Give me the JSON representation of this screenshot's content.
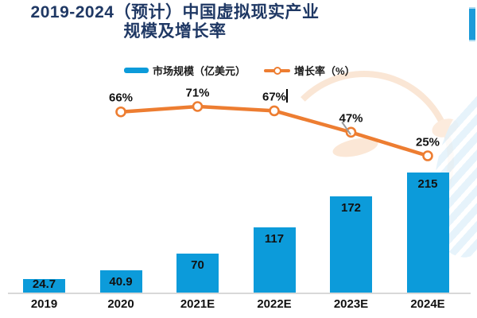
{
  "title": {
    "line1": "2019-2024（预计）中国虚拟现实产业",
    "line2": "规模及增长率"
  },
  "legend": {
    "market_label": "市场规模（亿美元）",
    "growth_label": "增长率（%）"
  },
  "colors": {
    "bar": "#0C9BDA",
    "line": "#ED7D31",
    "title": "#1F3864",
    "axis": "#D8D8D8",
    "scrollbar": "#1B9BD9"
  },
  "chart_data": {
    "type": "bar+line",
    "title": "2019-2024（预计）中国虚拟现实产业规模及增长率",
    "categories": [
      "2019",
      "2020",
      "2021E",
      "2022E",
      "2023E",
      "2024E"
    ],
    "series": [
      {
        "name": "市场规模（亿美元）",
        "type": "bar",
        "color": "#0C9BDA",
        "values": [
          24.7,
          40.9,
          70,
          117,
          172,
          215
        ],
        "labels": [
          "24.7",
          "40.9",
          "70",
          "117",
          "172",
          "215"
        ]
      },
      {
        "name": "增长率（%）",
        "type": "line",
        "color": "#ED7D31",
        "values": [
          null,
          66,
          71,
          67,
          47,
          25
        ],
        "labels": [
          "",
          "66%",
          "71%",
          "67%",
          "47%",
          "25%"
        ]
      }
    ],
    "legend_position": "top",
    "grid": false,
    "axes_visible": {
      "x": true,
      "y": false
    },
    "value_labels_shown": true
  }
}
